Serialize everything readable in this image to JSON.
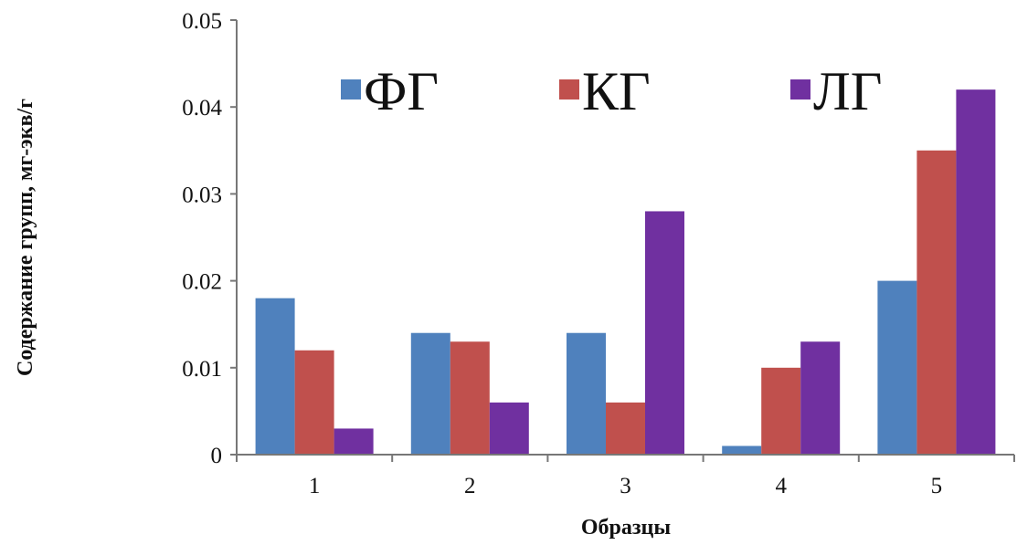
{
  "chart_data": {
    "type": "bar",
    "title": "",
    "xlabel": "Образцы",
    "ylabel": "Содержание групп, мг-экв/г",
    "categories": [
      "1",
      "2",
      "3",
      "4",
      "5"
    ],
    "ylim": [
      0,
      0.05
    ],
    "yticks": [
      "0",
      "0.01",
      "0.02",
      "0.03",
      "0.04",
      "0.05"
    ],
    "yticks_values": [
      0,
      0.01,
      0.02,
      0.03,
      0.04,
      0.05
    ],
    "grid": false,
    "legend_position": "top",
    "series": [
      {
        "name": "ФГ",
        "color": "#4F81BD",
        "values": [
          0.018,
          0.014,
          0.014,
          0.001,
          0.02
        ]
      },
      {
        "name": "КГ",
        "color": "#C0504D",
        "values": [
          0.012,
          0.013,
          0.006,
          0.01,
          0.035
        ]
      },
      {
        "name": "ЛГ",
        "color": "#7030A0",
        "values": [
          0.003,
          0.006,
          0.028,
          0.013,
          0.042
        ]
      }
    ]
  }
}
